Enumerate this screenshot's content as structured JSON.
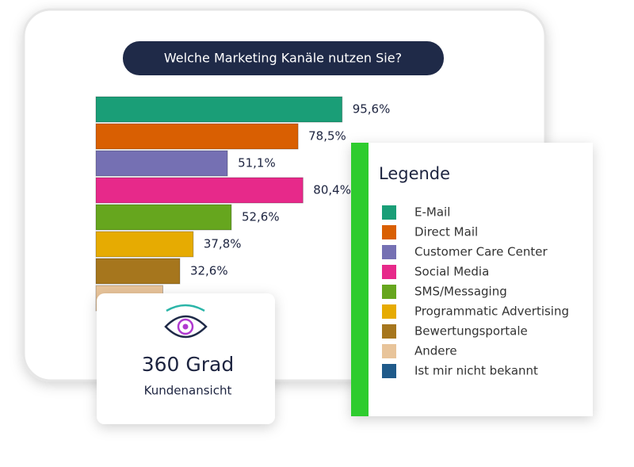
{
  "chart_data": {
    "type": "bar",
    "orientation": "horizontal",
    "title": "Welche Marketing Kanäle nutzen Sie?",
    "legend_title": "Legende",
    "categories": [
      "E-Mail",
      "Direct Mail",
      "Customer Care Center",
      "Social Media",
      "SMS/Messaging",
      "Programmatic Advertising",
      "Bewertungsportale",
      "Andere",
      "Ist mir nicht bekannt"
    ],
    "values": [
      95.6,
      78.5,
      51.1,
      80.4,
      52.6,
      37.8,
      32.6,
      26,
      null
    ],
    "value_labels": [
      "95,6%",
      "78,5%",
      "51,1%",
      "80,4%",
      "52,6%",
      "37,8%",
      "32,6%",
      null,
      null
    ],
    "colors": [
      "#1a9e77",
      "#d95f02",
      "#7570b3",
      "#e7298a",
      "#66a61e",
      "#e6ab02",
      "#a6761d",
      "#e8c49a",
      "#1f5a8a"
    ]
  },
  "card": {
    "title": "360 Grad",
    "subtitle": "Kundenansicht"
  }
}
